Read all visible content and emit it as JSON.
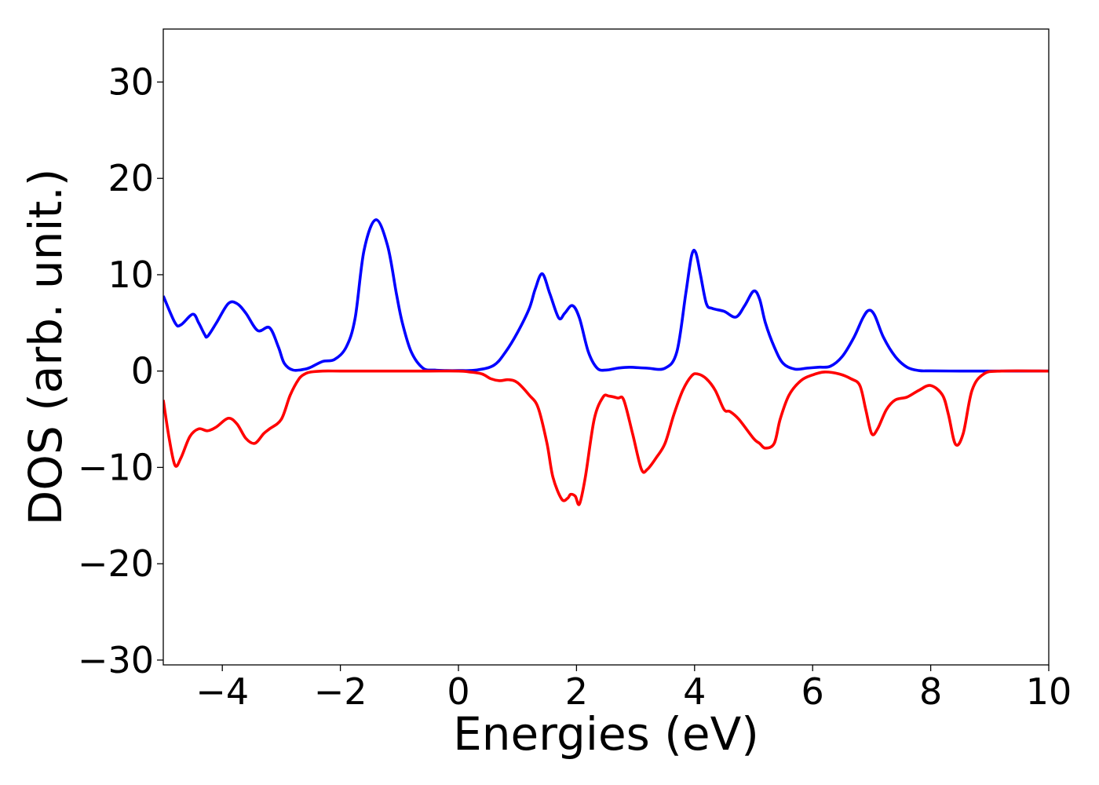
{
  "chart_data": {
    "type": "line",
    "title": "",
    "xlabel": "Energies (eV)",
    "ylabel": "DOS (arb. unit.)",
    "xlim": [
      -5,
      10
    ],
    "ylim": [
      -30.5,
      35.5
    ],
    "grid": false,
    "legend": "none",
    "xticks": [
      -4,
      -2,
      0,
      2,
      4,
      6,
      8,
      10
    ],
    "xtick_labels": [
      "−4",
      "−2",
      "0",
      "2",
      "4",
      "6",
      "8",
      "10"
    ],
    "yticks": [
      -30,
      -20,
      -10,
      0,
      10,
      20,
      30
    ],
    "ytick_labels": [
      "−30",
      "−20",
      "−10",
      "0",
      "10",
      "20",
      "30"
    ],
    "series": [
      {
        "color": "#0000ff",
        "x": [
          -5,
          -4.8,
          -4.7,
          -4.5,
          -4.4,
          -4.3,
          -4.25,
          -4.1,
          -3.9,
          -3.75,
          -3.6,
          -3.4,
          -3.2,
          -3.05,
          -2.95,
          -2.8,
          -2.6,
          -2.5,
          -2.3,
          -2.1,
          -1.9,
          -1.75,
          -1.6,
          -1.4,
          -1.2,
          -1.05,
          -0.95,
          -0.8,
          -0.6,
          -0.4,
          -0.2,
          0,
          0.3,
          0.6,
          0.8,
          1.0,
          1.2,
          1.3,
          1.42,
          1.55,
          1.7,
          1.8,
          1.93,
          2.05,
          2.2,
          2.35,
          2.5,
          2.7,
          2.9,
          3.2,
          3.5,
          3.7,
          3.85,
          3.95,
          4.02,
          4.1,
          4.2,
          4.3,
          4.5,
          4.7,
          4.85,
          5.0,
          5.1,
          5.2,
          5.35,
          5.5,
          5.7,
          5.9,
          6.1,
          6.3,
          6.5,
          6.7,
          6.85,
          6.95,
          7.05,
          7.2,
          7.4,
          7.6,
          7.8,
          8.0,
          8.5,
          9.0,
          10.0
        ],
        "y": [
          7.8,
          5.0,
          4.8,
          5.9,
          5.0,
          3.8,
          3.6,
          5.0,
          7.0,
          7.0,
          6.0,
          4.2,
          4.5,
          2.5,
          0.8,
          0.1,
          0.2,
          0.4,
          1.0,
          1.2,
          2.5,
          5.5,
          12.5,
          15.7,
          13.0,
          8.0,
          5.0,
          2.0,
          0.3,
          0.1,
          0.05,
          0.05,
          0.1,
          0.6,
          2.0,
          4.0,
          6.5,
          8.5,
          10.1,
          8.0,
          5.5,
          6.0,
          6.8,
          5.5,
          2.0,
          0.3,
          0.1,
          0.3,
          0.4,
          0.3,
          0.3,
          2.0,
          8.0,
          12.0,
          12.3,
          10.0,
          7.0,
          6.5,
          6.2,
          5.6,
          6.8,
          8.3,
          7.5,
          5.0,
          2.5,
          0.8,
          0.2,
          0.3,
          0.4,
          0.5,
          1.5,
          3.5,
          5.5,
          6.3,
          5.8,
          3.5,
          1.5,
          0.4,
          0.05,
          0.02,
          0.0,
          0.0,
          0.0
        ]
      },
      {
        "color": "#ff0000",
        "x": [
          -5,
          -4.9,
          -4.8,
          -4.7,
          -4.55,
          -4.4,
          -4.25,
          -4.1,
          -3.9,
          -3.75,
          -3.6,
          -3.45,
          -3.3,
          -3.2,
          -3.0,
          -2.85,
          -2.7,
          -2.6,
          -2.5,
          -2.3,
          -2.0,
          -1.5,
          -1.0,
          -0.5,
          0,
          0.2,
          0.4,
          0.55,
          0.7,
          0.85,
          1.0,
          1.2,
          1.35,
          1.5,
          1.6,
          1.75,
          1.85,
          1.9,
          1.98,
          2.05,
          2.15,
          2.3,
          2.45,
          2.55,
          2.7,
          2.8,
          2.95,
          3.1,
          3.2,
          3.35,
          3.5,
          3.65,
          3.8,
          3.95,
          4.05,
          4.2,
          4.35,
          4.5,
          4.6,
          4.75,
          5.0,
          5.1,
          5.2,
          5.35,
          5.45,
          5.6,
          5.8,
          6.0,
          6.2,
          6.45,
          6.65,
          6.8,
          6.9,
          7.0,
          7.1,
          7.25,
          7.4,
          7.6,
          7.8,
          8.0,
          8.2,
          8.3,
          8.42,
          8.55,
          8.7,
          8.9,
          9.2,
          10.0
        ],
        "y": [
          -3.0,
          -7.0,
          -9.8,
          -9.0,
          -6.8,
          -6.0,
          -6.2,
          -5.8,
          -4.9,
          -5.5,
          -7.0,
          -7.5,
          -6.5,
          -6.0,
          -5.0,
          -2.5,
          -0.8,
          -0.3,
          -0.1,
          0.0,
          0.0,
          0.0,
          0.0,
          0.0,
          0.0,
          -0.1,
          -0.3,
          -0.8,
          -1.0,
          -0.9,
          -1.2,
          -2.5,
          -3.8,
          -7.5,
          -11.0,
          -13.3,
          -13.2,
          -12.8,
          -13.0,
          -13.8,
          -11.0,
          -5.0,
          -2.7,
          -2.6,
          -2.8,
          -3.0,
          -6.5,
          -10.2,
          -10.2,
          -9.0,
          -7.5,
          -4.5,
          -2.0,
          -0.5,
          -0.3,
          -0.8,
          -2.0,
          -4.0,
          -4.2,
          -5.0,
          -7.0,
          -7.5,
          -8.0,
          -7.5,
          -5.0,
          -2.5,
          -1.0,
          -0.4,
          -0.1,
          -0.3,
          -0.8,
          -1.5,
          -4.0,
          -6.5,
          -6.0,
          -4.0,
          -3.0,
          -2.7,
          -2.0,
          -1.5,
          -2.5,
          -4.5,
          -7.6,
          -6.5,
          -2.0,
          -0.3,
          0.0,
          0.0
        ]
      }
    ]
  }
}
